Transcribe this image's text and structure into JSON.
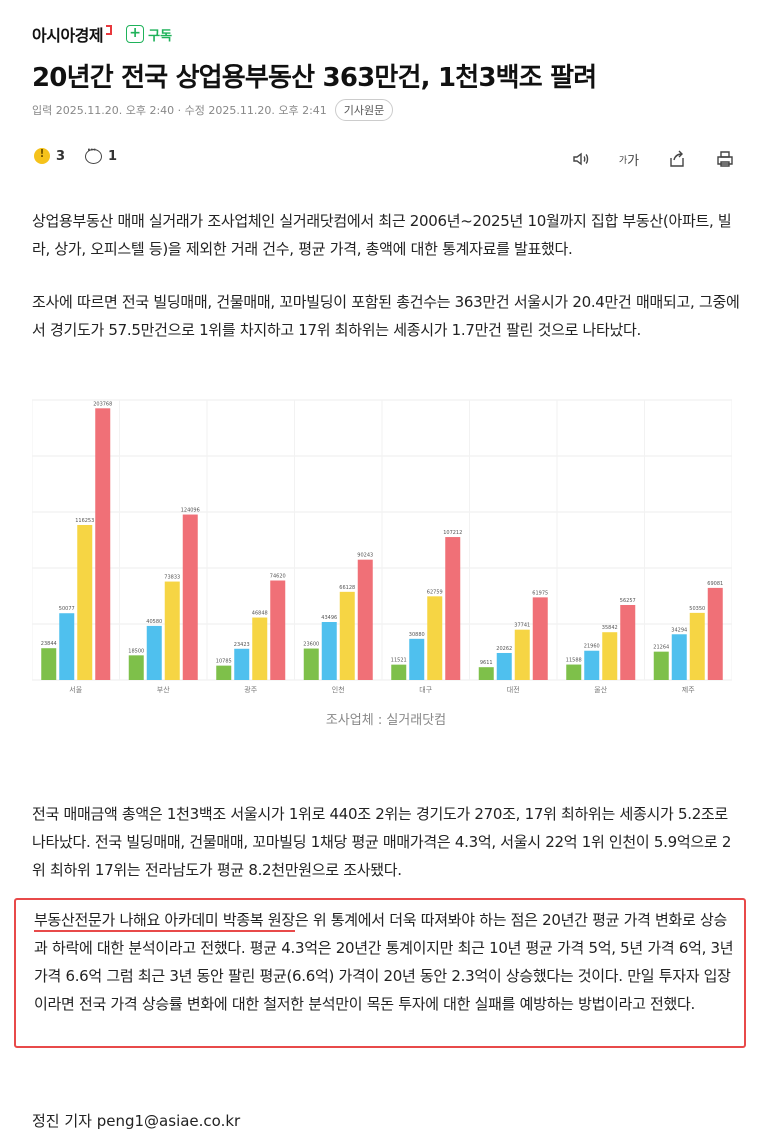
{
  "brand": {
    "name": "아시아경제",
    "subscribe_label": "구독"
  },
  "article": {
    "headline": "20년간 전국 상업용부동산 363만건, 1천3백조 팔려",
    "meta": "입력 2025.11.20. 오후 2:40 · 수정 2025.11.20. 오후 2:41",
    "source_button": "기사원문",
    "reaction_count": "3",
    "comment_count": "1",
    "font_button": "가",
    "para1": "상업용부동산 매매 실거래가 조사업체인 실거래닷컴에서 최근 2006년~2025년 10월까지 집합 부동산(아파트, 빌라, 상가, 오피스텔 등)을 제외한 거래 건수, 평균 가격, 총액에 대한 통계자료를 발표했다.",
    "para2": "조사에 따르면 전국 빌딩매매, 건물매매, 꼬마빌딩이 포함된 총건수는 363만건 서울시가 20.4만건 매매되고, 그중에서 경기도가 57.5만건으로 1위를 차지하고 17위 최하위는 세종시가 1.7만건 팔린 것으로 나타났다.",
    "caption": "조사업체 : 실거래닷컴",
    "para3": "전국 매매금액 총액은 1천3백조 서울시가 1위로 440조 2위는 경기도가 270조, 17위 최하위는 세종시가 5.2조로 나타났다. 전국 빌딩매매, 건물매매, 꼬마빌딩 1채당 평균 매매가격은 4.3억, 서울시 22억 1위 인천이 5.9억으로 2위 최하위 17위는 전라남도가 평균 8.2천만원으로 조사됐다.",
    "para4_name": "부동산전문가 나해요 아카데미 박종복 원장",
    "para4_rest": "은 위 통계에서 더욱 따져봐야 하는 점은 20년간 평균 가격 변화로 상승과 하락에 대한 분석이라고 전했다. 평균 4.3억은 20년간 통계이지만 최근 10년 평균 가격 5억, 5년 가격 6억, 3년 가격 6.6억 그럼 최근 3년 동안 팔린 평균(6.6억) 가격이 20년 동안 2.3억이 상승했다는 것이다. 만일 투자자 입장이라면 전국 가격 상승률 변화에 대한 철저한 분석만이 목돈 투자에 대한 실패를 예방하는 방법이라고 전했다.",
    "byline": "정진 기자 peng1@asiae.co.kr"
  },
  "colors": {
    "accent_green": "#1fb25a",
    "highlight_red": "#e84a4a",
    "bar_colors": [
      "#7ec04a",
      "#4fc0ee",
      "#f6d544",
      "#f07077"
    ]
  },
  "chart_data": {
    "type": "bar",
    "categories": [
      "서울",
      "부산",
      "광주",
      "인천",
      "대구",
      "대전",
      "울산",
      "제주"
    ],
    "series": [
      {
        "values": [
          23844,
          18500,
          10785,
          23600,
          11521,
          9611,
          11588,
          21264
        ]
      },
      {
        "values": [
          50077,
          40580,
          23423,
          43496,
          30880,
          20262,
          21960,
          34294
        ]
      },
      {
        "values": [
          116253,
          73833,
          46848,
          66128,
          62759,
          37741,
          35842,
          50350
        ]
      },
      {
        "values": [
          203768,
          124096,
          74620,
          90243,
          107212,
          61975,
          56257,
          69081
        ]
      }
    ],
    "ylim": [
      0,
      210000
    ],
    "grid": true,
    "legend": "none"
  }
}
